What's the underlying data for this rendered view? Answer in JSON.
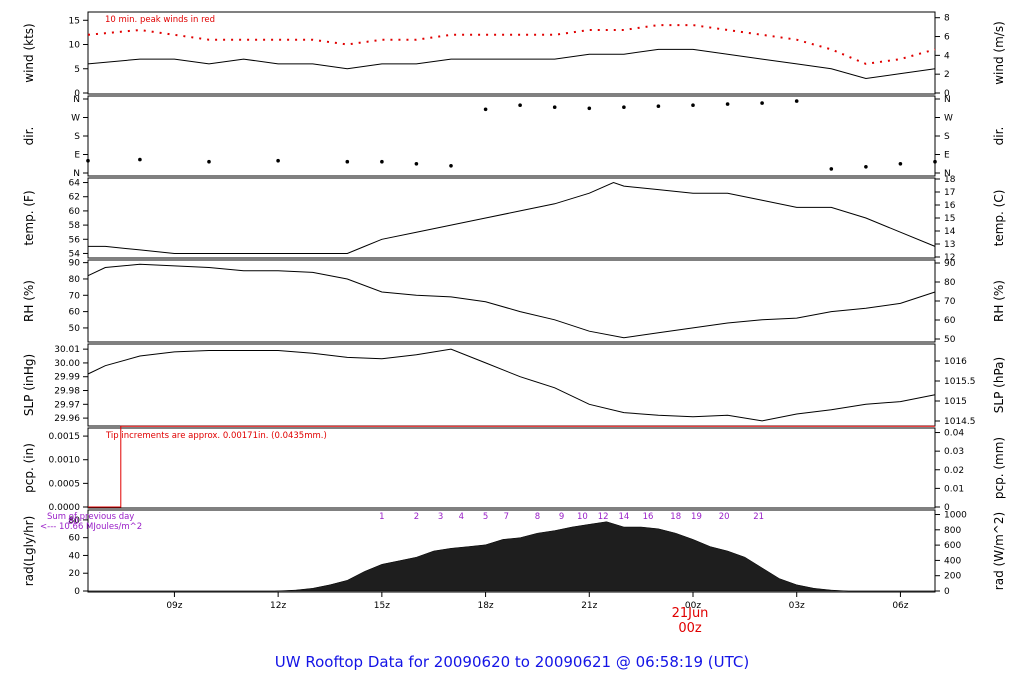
{
  "title": "UW Rooftop Data for 20090620  to  20090621 @ 06:58:19  (UTC)",
  "colors": {
    "frame": "#000000",
    "peak": "#e00000",
    "date": "#e00000",
    "title": "#1414e6",
    "rad_labels": "#9a20c8",
    "trace": "#000000"
  },
  "time_axis": {
    "ticks": [
      {
        "hour": 9,
        "label": "09z"
      },
      {
        "hour": 12,
        "label": "12z"
      },
      {
        "hour": 15,
        "label": "15z"
      },
      {
        "hour": 18,
        "label": "18z"
      },
      {
        "hour": 21,
        "label": "21z"
      },
      {
        "hour": 24,
        "label": "00z"
      },
      {
        "hour": 27,
        "label": "03z"
      },
      {
        "hour": 30,
        "label": "06z"
      }
    ],
    "date_label": "21Jun",
    "date_sub": "00z"
  },
  "chart_data": [
    {
      "type": "line",
      "id": "wind",
      "ylabel": "wind (kts)",
      "ylabel_right": "wind (m/s)",
      "ylim": [
        0,
        16.5
      ],
      "yticks": [
        "0",
        "5",
        "10",
        "15"
      ],
      "yticks_right": [
        "0",
        "2",
        "4",
        "6",
        "8"
      ],
      "ylim_right": [
        0,
        8.5
      ],
      "annotation": "10 min. peak winds in red",
      "series": [
        {
          "name": "",
          "x": [
            6.5,
            8,
            9,
            10,
            11,
            12,
            13,
            14,
            15,
            16,
            17,
            18,
            19,
            20,
            21,
            22,
            23,
            24,
            25,
            26,
            27,
            28,
            29,
            30,
            31
          ],
          "y": [
            6,
            7,
            7,
            6,
            7,
            6,
            6,
            5,
            6,
            6,
            7,
            7,
            7,
            7,
            8,
            8,
            9,
            9,
            8,
            7,
            6,
            5,
            3,
            4,
            5
          ]
        },
        {
          "name": "",
          "x": [
            6.5,
            8,
            9,
            10,
            11,
            12,
            13,
            14,
            15,
            16,
            17,
            18,
            19,
            20,
            21,
            22,
            23,
            24,
            25,
            26,
            27,
            28,
            29,
            30,
            31
          ],
          "y": [
            12,
            13,
            12,
            11,
            11,
            11,
            11,
            10,
            11,
            11,
            12,
            12,
            12,
            12,
            13,
            13,
            14,
            14,
            13,
            12,
            11,
            9,
            6,
            7,
            9
          ]
        }
      ]
    },
    {
      "type": "scatter",
      "id": "dir",
      "ylabel": "dir.",
      "ylabel_right": "dir.",
      "yticks": [
        "N",
        "E",
        "S",
        "W",
        "N"
      ],
      "yticks_right": [
        "N",
        "E",
        "S",
        "W",
        "N"
      ],
      "ylim": [
        0,
        360
      ],
      "series": [
        {
          "name": "",
          "x": [
            6.5,
            8,
            10,
            12,
            14,
            15,
            16,
            17,
            18,
            19,
            20,
            21,
            22,
            23,
            24,
            25,
            26,
            27,
            28,
            29,
            30,
            31
          ],
          "y": [
            60,
            65,
            55,
            60,
            55,
            55,
            45,
            35,
            310,
            330,
            320,
            315,
            320,
            325,
            330,
            335,
            340,
            350,
            20,
            30,
            45,
            55
          ]
        }
      ]
    },
    {
      "type": "line",
      "id": "temp",
      "ylabel": "temp. (F)",
      "ylabel_right": "temp. (C)",
      "ylim": [
        53.5,
        64.5
      ],
      "yticks": [
        "54",
        "56",
        "58",
        "60",
        "62",
        "64"
      ],
      "yticks_right": [
        "12",
        "13",
        "14",
        "15",
        "16",
        "17",
        "18"
      ],
      "ylim_right": [
        12,
        18
      ],
      "series": [
        {
          "name": "",
          "x": [
            6.5,
            7,
            8,
            9,
            10,
            11,
            12,
            13,
            14,
            14.5,
            15,
            16,
            17,
            18,
            19,
            20,
            21,
            21.7,
            22,
            23,
            24,
            25,
            26,
            27,
            28,
            29,
            30,
            31
          ],
          "y": [
            55,
            55,
            54.5,
            54,
            54,
            54,
            54,
            54,
            54,
            55,
            56,
            57,
            58,
            59,
            60,
            61,
            62.5,
            64,
            63.5,
            63,
            62.5,
            62.5,
            61.5,
            60.5,
            60.5,
            59,
            57,
            55
          ]
        }
      ]
    },
    {
      "type": "line",
      "id": "rh",
      "ylabel": "RH (%)",
      "ylabel_right": "RH (%)",
      "ylim": [
        42,
        91
      ],
      "yticks": [
        "50",
        "60",
        "70",
        "80",
        "90"
      ],
      "yticks_right": [
        "50",
        "60",
        "70",
        "80",
        "90"
      ],
      "series": [
        {
          "name": "",
          "x": [
            6.5,
            7,
            8,
            9,
            10,
            11,
            12,
            13,
            14,
            15,
            16,
            17,
            18,
            19,
            20,
            21,
            22,
            23,
            24,
            25,
            26,
            27,
            28,
            29,
            30,
            31
          ],
          "y": [
            82,
            87,
            89,
            88,
            87,
            85,
            85,
            84,
            80,
            72,
            70,
            69,
            66,
            60,
            55,
            48,
            44,
            47,
            50,
            53,
            55,
            56,
            60,
            62,
            65,
            72
          ]
        }
      ]
    },
    {
      "type": "line",
      "id": "slp",
      "ylabel": "SLP (inHg)",
      "ylabel_right": "SLP (hPa)",
      "ylim": [
        29.955,
        30.013
      ],
      "yticks": [
        "29.96",
        "29.97",
        "29.98",
        "29.99",
        "30.00",
        "30.01"
      ],
      "yticks_right": [
        "1014.5",
        "1015",
        "1015.5",
        "1016"
      ],
      "ylim_right": [
        1014.4,
        1016.4
      ],
      "series": [
        {
          "name": "",
          "x": [
            6.5,
            7,
            8,
            9,
            10,
            11,
            12,
            13,
            14,
            15,
            16,
            17,
            18,
            19,
            20,
            21,
            22,
            23,
            24,
            25,
            26,
            27,
            28,
            29,
            30,
            31
          ],
          "y": [
            29.992,
            29.998,
            30.005,
            30.008,
            30.009,
            30.009,
            30.009,
            30.007,
            30.004,
            30.003,
            30.006,
            30.01,
            30.0,
            29.99,
            29.982,
            29.97,
            29.964,
            29.962,
            29.961,
            29.962,
            29.958,
            29.963,
            29.966,
            29.97,
            29.972,
            29.977
          ]
        }
      ]
    },
    {
      "type": "line",
      "id": "pcp",
      "ylabel": "pcp. (in)",
      "ylabel_right": "pcp. (mm)",
      "ylim": [
        0,
        0.00165
      ],
      "yticks": [
        "0.0000",
        "0.0005",
        "0.0010",
        "0.0015"
      ],
      "yticks_right": [
        "0",
        "0.01",
        "0.02",
        "0.03",
        "0.04"
      ],
      "ylim_right": [
        0,
        0.0419
      ],
      "annotation": "Tip increments are approx. 0.00171in. (0.0435mm.)",
      "series": [
        {
          "name": "",
          "x": [
            6.5,
            7.45,
            7.45,
            31
          ],
          "y": [
            0,
            0,
            0.00171,
            0.00171
          ]
        }
      ]
    },
    {
      "type": "area",
      "id": "rad",
      "ylabel": "rad(Lgly/hr)",
      "ylabel_right": "rad (W/m^2)",
      "ylim": [
        0,
        90
      ],
      "yticks": [
        "0",
        "20",
        "40",
        "60",
        "80"
      ],
      "yticks_right": [
        "0",
        "200",
        "400",
        "600",
        "800",
        "1000"
      ],
      "ylim_right": [
        0,
        1046
      ],
      "annotation_top": "Sum of previous day",
      "annotation_bottom": "<--- 10.66 MJoules/m^2",
      "annotation_value": "80",
      "hour_marks": [
        {
          "hour": 15,
          "label": "1"
        },
        {
          "hour": 16,
          "label": "2"
        },
        {
          "hour": 16.7,
          "label": "3"
        },
        {
          "hour": 17.3,
          "label": "4"
        },
        {
          "hour": 18,
          "label": "5"
        },
        {
          "hour": 18.6,
          "label": "7"
        },
        {
          "hour": 19.5,
          "label": "8"
        },
        {
          "hour": 20.2,
          "label": "9"
        },
        {
          "hour": 20.8,
          "label": "10"
        },
        {
          "hour": 21.4,
          "label": "12"
        },
        {
          "hour": 22,
          "label": "14"
        },
        {
          "hour": 22.7,
          "label": "16"
        },
        {
          "hour": 23.5,
          "label": "18"
        },
        {
          "hour": 24.1,
          "label": "19"
        },
        {
          "hour": 24.9,
          "label": "20"
        },
        {
          "hour": 25.9,
          "label": "21"
        }
      ],
      "series": [
        {
          "name": "",
          "x": [
            6.5,
            11.9,
            12.5,
            13,
            13.5,
            14,
            14.5,
            15,
            15.5,
            16,
            16.5,
            17,
            17.5,
            18,
            18.5,
            19,
            19.5,
            20,
            20.5,
            21,
            21.5,
            22,
            22.5,
            23,
            23.5,
            24,
            24.5,
            25,
            25.5,
            26,
            26.5,
            27,
            27.5,
            28,
            28.5,
            31
          ],
          "y": [
            0,
            0,
            1,
            3,
            7,
            12,
            22,
            30,
            34,
            38,
            45,
            48,
            50,
            52,
            58,
            60,
            65,
            68,
            72,
            75,
            78,
            72,
            72,
            70,
            65,
            58,
            50,
            45,
            38,
            26,
            14,
            7,
            3,
            1,
            0,
            0
          ]
        }
      ]
    }
  ]
}
